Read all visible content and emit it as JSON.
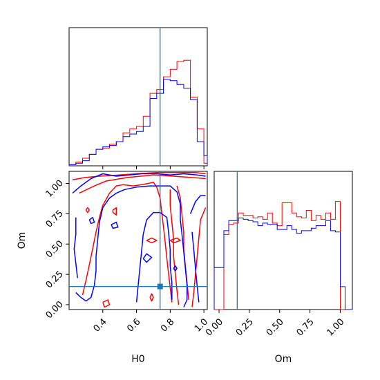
{
  "colors": {
    "series_red": "#ff0000",
    "series_blue": "#0000ff",
    "truth": "#1f77b4"
  },
  "chart_data": {
    "type": "corner",
    "parameters": [
      "H0",
      "Om"
    ],
    "xlabel_H0": "H0",
    "xlabel_Om": "Om",
    "ylabel_Om": "Om",
    "truth": {
      "H0": 0.74,
      "Om": 0.15
    },
    "H0_axis": {
      "range": [
        0.2,
        1.02
      ],
      "ticks": [
        0.4,
        0.6,
        0.8,
        1.0
      ],
      "tick_labels": [
        "0.4",
        "0.6",
        "0.8",
        "1.0"
      ]
    },
    "Om_axis": {
      "range": [
        -0.04,
        1.1
      ],
      "ticks": [
        0.0,
        0.25,
        0.5,
        0.75,
        1.0
      ],
      "tick_labels": [
        "0.00",
        "0.25",
        "0.50",
        "0.75",
        "1.00"
      ]
    },
    "hist_H0": {
      "bin_edges": [
        0.2,
        0.24,
        0.28,
        0.32,
        0.36,
        0.4,
        0.44,
        0.48,
        0.52,
        0.56,
        0.6,
        0.64,
        0.68,
        0.72,
        0.76,
        0.8,
        0.84,
        0.88,
        0.92,
        0.96,
        1.0,
        1.02
      ],
      "ymax": 1.0,
      "series": [
        {
          "name": "red",
          "values": [
            0.01,
            0.03,
            0.06,
            0.09,
            0.13,
            0.14,
            0.17,
            0.19,
            0.26,
            0.29,
            0.31,
            0.39,
            0.57,
            0.6,
            0.7,
            0.76,
            0.82,
            0.83,
            0.54,
            0.29,
            0.02
          ]
        },
        {
          "name": "blue",
          "values": [
            0.01,
            0.02,
            0.04,
            0.09,
            0.13,
            0.15,
            0.16,
            0.19,
            0.23,
            0.25,
            0.27,
            0.31,
            0.53,
            0.57,
            0.68,
            0.67,
            0.64,
            0.61,
            0.52,
            0.19,
            0.08
          ]
        }
      ]
    },
    "hist_Om": {
      "bin_edges": [
        -0.04,
        0.0,
        0.04,
        0.08,
        0.12,
        0.16,
        0.2,
        0.24,
        0.28,
        0.32,
        0.36,
        0.4,
        0.44,
        0.48,
        0.52,
        0.56,
        0.6,
        0.64,
        0.68,
        0.72,
        0.76,
        0.8,
        0.84,
        0.88,
        0.92,
        0.96,
        1.0,
        1.04,
        1.1
      ],
      "ymax": 1.0,
      "series": [
        {
          "name": "red",
          "values": [
            0.0,
            0.0,
            0.59,
            0.67,
            0.68,
            0.76,
            0.74,
            0.74,
            0.72,
            0.73,
            0.71,
            0.76,
            0.68,
            0.66,
            0.84,
            0.84,
            0.76,
            0.73,
            0.72,
            0.78,
            0.7,
            0.74,
            0.71,
            0.76,
            0.71,
            0.85,
            0.0,
            0.0
          ]
        },
        {
          "name": "blue",
          "values": [
            0.33,
            0.33,
            0.62,
            0.7,
            0.7,
            0.72,
            0.71,
            0.7,
            0.69,
            0.66,
            0.68,
            0.67,
            0.67,
            0.63,
            0.63,
            0.66,
            0.63,
            0.6,
            0.62,
            0.62,
            0.64,
            0.66,
            0.66,
            0.7,
            0.62,
            0.61,
            0.18,
            0.0
          ]
        }
      ]
    },
    "contours": [
      {
        "name": "red",
        "paths": [
          [
            [
              0.22,
              1.03
            ],
            [
              0.3,
              1.05
            ],
            [
              0.38,
              1.06
            ],
            [
              0.5,
              1.07
            ],
            [
              0.6,
              1.08
            ],
            [
              0.72,
              1.09
            ],
            [
              0.84,
              1.09
            ],
            [
              0.95,
              1.09
            ],
            [
              1.01,
              1.08
            ]
          ],
          [
            [
              0.26,
              0.92
            ],
            [
              0.35,
              0.98
            ],
            [
              0.42,
              1.02
            ],
            [
              0.55,
              1.05
            ],
            [
              0.7,
              1.07
            ],
            [
              0.82,
              1.06
            ],
            [
              0.92,
              1.05
            ],
            [
              1.01,
              1.04
            ]
          ],
          [
            [
              0.28,
              0.08
            ],
            [
              0.3,
              0.2
            ],
            [
              0.32,
              0.33
            ],
            [
              0.34,
              0.46
            ],
            [
              0.36,
              0.6
            ],
            [
              0.38,
              0.72
            ],
            [
              0.4,
              0.82
            ],
            [
              0.44,
              0.92
            ],
            [
              0.48,
              0.98
            ],
            [
              0.52,
              0.99
            ],
            [
              0.58,
              0.98
            ],
            [
              0.63,
              0.99
            ],
            [
              0.67,
              1.0
            ],
            [
              0.7,
              1.01
            ],
            [
              0.72,
              0.97
            ],
            [
              0.74,
              0.88
            ],
            [
              0.75,
              0.76
            ],
            [
              0.76,
              0.64
            ],
            [
              0.77,
              0.52
            ],
            [
              0.78,
              0.38
            ],
            [
              0.79,
              0.26
            ],
            [
              0.8,
              0.14
            ],
            [
              0.81,
              0.02
            ]
          ],
          [
            [
              0.8,
              0.95
            ],
            [
              0.8,
              0.82
            ],
            [
              0.81,
              0.68
            ],
            [
              0.82,
              0.54
            ],
            [
              0.82,
              0.4
            ],
            [
              0.83,
              0.26
            ],
            [
              0.84,
              0.12
            ],
            [
              0.85,
              0.0
            ]
          ],
          [
            [
              0.84,
              0.98
            ],
            [
              0.86,
              0.88
            ],
            [
              0.87,
              0.74
            ],
            [
              0.88,
              0.6
            ],
            [
              0.88,
              0.46
            ],
            [
              0.89,
              0.32
            ],
            [
              0.9,
              0.18
            ],
            [
              0.91,
              0.04
            ]
          ],
          [
            [
              1.01,
              0.8
            ],
            [
              0.98,
              0.7
            ],
            [
              0.97,
              0.55
            ],
            [
              0.96,
              0.4
            ],
            [
              0.95,
              0.25
            ],
            [
              0.94,
              0.1
            ],
            [
              0.93,
              -0.02
            ]
          ],
          [
            [
              0.4,
              0.02
            ],
            [
              0.43,
              0.04
            ],
            [
              0.44,
              0.0
            ],
            [
              0.41,
              -0.02
            ],
            [
              0.4,
              0.02
            ]
          ],
          [
            [
              0.46,
              0.78
            ],
            [
              0.48,
              0.8
            ],
            [
              0.48,
              0.74
            ],
            [
              0.46,
              0.76
            ],
            [
              0.46,
              0.78
            ]
          ],
          [
            [
              0.3,
              0.78
            ],
            [
              0.31,
              0.8
            ],
            [
              0.32,
              0.78
            ],
            [
              0.31,
              0.76
            ],
            [
              0.3,
              0.78
            ]
          ],
          [
            [
              0.66,
              0.53
            ],
            [
              0.69,
              0.55
            ],
            [
              0.72,
              0.53
            ],
            [
              0.69,
              0.51
            ],
            [
              0.66,
              0.53
            ]
          ],
          [
            [
              0.8,
              0.53
            ],
            [
              0.84,
              0.55
            ],
            [
              0.86,
              0.53
            ],
            [
              0.82,
              0.51
            ],
            [
              0.8,
              0.53
            ]
          ],
          [
            [
              0.68,
              0.06
            ],
            [
              0.69,
              0.09
            ],
            [
              0.7,
              0.06
            ],
            [
              0.69,
              0.03
            ],
            [
              0.68,
              0.06
            ]
          ]
        ]
      },
      {
        "name": "blue",
        "paths": [
          [
            [
              0.24,
              0.1
            ],
            [
              0.27,
              0.06
            ],
            [
              0.3,
              0.03
            ],
            [
              0.33,
              0.06
            ],
            [
              0.35,
              0.16
            ],
            [
              0.36,
              0.28
            ],
            [
              0.36,
              0.4
            ],
            [
              0.37,
              0.54
            ],
            [
              0.38,
              0.68
            ],
            [
              0.4,
              0.8
            ],
            [
              0.44,
              0.88
            ],
            [
              0.48,
              0.92
            ],
            [
              0.53,
              0.95
            ],
            [
              0.6,
              0.97
            ],
            [
              0.68,
              0.98
            ],
            [
              0.74,
              0.98
            ],
            [
              0.8,
              0.98
            ],
            [
              0.84,
              0.93
            ],
            [
              0.86,
              0.83
            ],
            [
              0.86,
              0.7
            ],
            [
              0.87,
              0.58
            ],
            [
              0.88,
              0.44
            ],
            [
              0.89,
              0.3
            ],
            [
              0.9,
              0.16
            ],
            [
              0.9,
              0.04
            ],
            [
              0.88,
              -0.02
            ]
          ],
          [
            [
              0.22,
              0.92
            ],
            [
              0.27,
              0.98
            ],
            [
              0.33,
              1.04
            ],
            [
              0.4,
              1.08
            ],
            [
              0.48,
              1.06
            ],
            [
              0.56,
              1.07
            ],
            [
              0.63,
              1.08
            ],
            [
              0.72,
              1.08
            ],
            [
              0.8,
              1.07
            ],
            [
              0.88,
              1.08
            ],
            [
              0.96,
              1.07
            ],
            [
              1.01,
              1.06
            ]
          ],
          [
            [
              0.24,
              0.72
            ],
            [
              0.24,
              0.58
            ],
            [
              0.23,
              0.46
            ],
            [
              0.24,
              0.34
            ],
            [
              0.25,
              0.22
            ]
          ],
          [
            [
              0.6,
              0.02
            ],
            [
              0.61,
              0.16
            ],
            [
              0.62,
              0.3
            ],
            [
              0.63,
              0.44
            ],
            [
              0.64,
              0.58
            ],
            [
              0.66,
              0.7
            ],
            [
              0.7,
              0.76
            ],
            [
              0.74,
              0.76
            ],
            [
              0.78,
              0.72
            ],
            [
              0.79,
              0.6
            ],
            [
              0.8,
              0.46
            ],
            [
              0.8,
              0.32
            ],
            [
              0.81,
              0.18
            ],
            [
              0.81,
              0.04
            ]
          ],
          [
            [
              0.92,
              0.75
            ],
            [
              0.95,
              0.85
            ],
            [
              0.98,
              0.9
            ],
            [
              1.01,
              0.9
            ]
          ],
          [
            [
              0.93,
              0.6
            ],
            [
              0.94,
              0.45
            ],
            [
              0.95,
              0.3
            ],
            [
              0.96,
              0.15
            ],
            [
              0.97,
              0.02
            ]
          ],
          [
            [
              0.64,
              0.38
            ],
            [
              0.66,
              0.42
            ],
            [
              0.69,
              0.39
            ],
            [
              0.66,
              0.35
            ],
            [
              0.64,
              0.38
            ]
          ],
          [
            [
              0.82,
              0.3
            ],
            [
              0.83,
              0.32
            ],
            [
              0.84,
              0.3
            ],
            [
              0.83,
              0.28
            ],
            [
              0.82,
              0.3
            ]
          ],
          [
            [
              0.45,
              0.66
            ],
            [
              0.48,
              0.68
            ],
            [
              0.49,
              0.64
            ],
            [
              0.46,
              0.63
            ],
            [
              0.45,
              0.66
            ]
          ],
          [
            [
              0.32,
              0.7
            ],
            [
              0.34,
              0.72
            ],
            [
              0.35,
              0.68
            ],
            [
              0.33,
              0.67
            ],
            [
              0.32,
              0.7
            ]
          ]
        ]
      }
    ]
  }
}
